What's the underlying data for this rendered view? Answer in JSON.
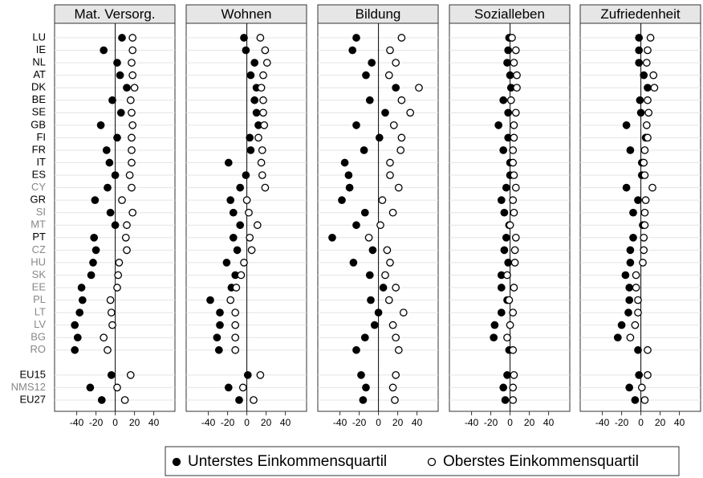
{
  "chart_data": {
    "type": "dot",
    "categories": [
      "LU",
      "IE",
      "NL",
      "AT",
      "DK",
      "BE",
      "SE",
      "GB",
      "FI",
      "FR",
      "IT",
      "ES",
      "CY",
      "GR",
      "SI",
      "MT",
      "PT",
      "CZ",
      "HU",
      "SK",
      "EE",
      "PL",
      "LT",
      "LV",
      "BG",
      "RO",
      null,
      "EU15",
      "NMS12",
      "EU27"
    ],
    "category_colors": [
      "#000",
      "#000",
      "#000",
      "#000",
      "#000",
      "#000",
      "#000",
      "#000",
      "#000",
      "#000",
      "#000",
      "#000",
      "#888",
      "#000",
      "#888",
      "#888",
      "#000",
      "#888",
      "#888",
      "#888",
      "#888",
      "#888",
      "#888",
      "#888",
      "#888",
      "#888",
      null,
      "#000",
      "#888",
      "#000"
    ],
    "xlim": [
      -63,
      62
    ],
    "xticks": [
      -40,
      -20,
      0,
      20,
      40
    ],
    "grid": true,
    "legend": "bottom",
    "series": [
      {
        "name": "Unterstes Einkommensquartil",
        "color": "#000",
        "marker": "filled"
      },
      {
        "name": "Oberstes Einkommensquartil",
        "color": "#000",
        "marker": "open"
      }
    ],
    "panels": [
      {
        "title": "Mat. Versorg.",
        "values": [
          [
            7,
            -12,
            2,
            5,
            12,
            -3,
            6,
            -15,
            2,
            -9,
            -6,
            0,
            -8,
            -21,
            -5,
            0,
            -22,
            -20,
            -23,
            -25,
            -35,
            -34,
            -37,
            -42,
            -39,
            -42,
            null,
            -4,
            -26,
            -14
          ],
          [
            18,
            18,
            17,
            18,
            20,
            16,
            17,
            18,
            17,
            17,
            17,
            15,
            17,
            7,
            18,
            12,
            11,
            12,
            4,
            3,
            2,
            -5,
            -4,
            -3,
            -12,
            -8,
            null,
            16,
            2,
            10
          ]
        ]
      },
      {
        "title": "Wohnen",
        "values": [
          [
            -3,
            -1,
            8,
            4,
            10,
            8,
            10,
            12,
            3,
            4,
            -19,
            -1,
            -7,
            -17,
            -14,
            -7,
            -14,
            -10,
            -21,
            -12,
            -16,
            -38,
            -28,
            -28,
            -31,
            -29,
            null,
            1,
            -19,
            -8
          ],
          [
            14,
            19,
            21,
            17,
            15,
            17,
            17,
            18,
            12,
            16,
            15,
            16,
            19,
            0,
            2,
            11,
            3,
            5,
            -3,
            -6,
            -11,
            -17,
            -12,
            -12,
            -12,
            -12,
            null,
            14,
            -4,
            7
          ]
        ]
      },
      {
        "title": "Bildung",
        "values": [
          [
            -23,
            -27,
            -7,
            -13,
            18,
            -9,
            7,
            -23,
            1,
            -15,
            -35,
            -31,
            -30,
            -38,
            -14,
            -23,
            -48,
            -6,
            -26,
            -9,
            5,
            -8,
            0,
            -4,
            -14,
            -23,
            null,
            -18,
            -13,
            -16
          ],
          [
            24,
            12,
            18,
            11,
            42,
            24,
            33,
            16,
            24,
            23,
            12,
            12,
            21,
            4,
            15,
            2,
            -10,
            9,
            12,
            7,
            18,
            11,
            26,
            15,
            18,
            21,
            null,
            18,
            15,
            17
          ]
        ]
      },
      {
        "title": "Sozialleben",
        "values": [
          [
            -1,
            -2,
            -3,
            0,
            1,
            -7,
            -2,
            -12,
            -2,
            -7,
            0,
            0,
            -4,
            -9,
            -6,
            -1,
            -4,
            -6,
            -2,
            -9,
            -9,
            -3,
            -9,
            -16,
            -17,
            -1,
            null,
            -3,
            -7,
            -5
          ],
          [
            2,
            6,
            4,
            7,
            7,
            1,
            6,
            4,
            4,
            3,
            3,
            4,
            6,
            3,
            4,
            0,
            6,
            5,
            5,
            -3,
            4,
            -1,
            3,
            0,
            -3,
            3,
            null,
            4,
            3,
            3
          ]
        ]
      },
      {
        "title": "Zufriedenheit",
        "values": [
          [
            -2,
            -2,
            -2,
            3,
            7,
            -1,
            0,
            -15,
            5,
            -11,
            1,
            1,
            -15,
            -3,
            -8,
            2,
            -8,
            -11,
            -11,
            -16,
            -12,
            -12,
            -13,
            -20,
            -24,
            -3,
            null,
            -2,
            -12,
            -6
          ],
          [
            10,
            7,
            6,
            13,
            14,
            7,
            8,
            6,
            7,
            4,
            3,
            4,
            12,
            5,
            4,
            4,
            3,
            3,
            2,
            -5,
            -5,
            -3,
            -3,
            -6,
            -11,
            7,
            null,
            7,
            1,
            4
          ]
        ]
      }
    ]
  }
}
